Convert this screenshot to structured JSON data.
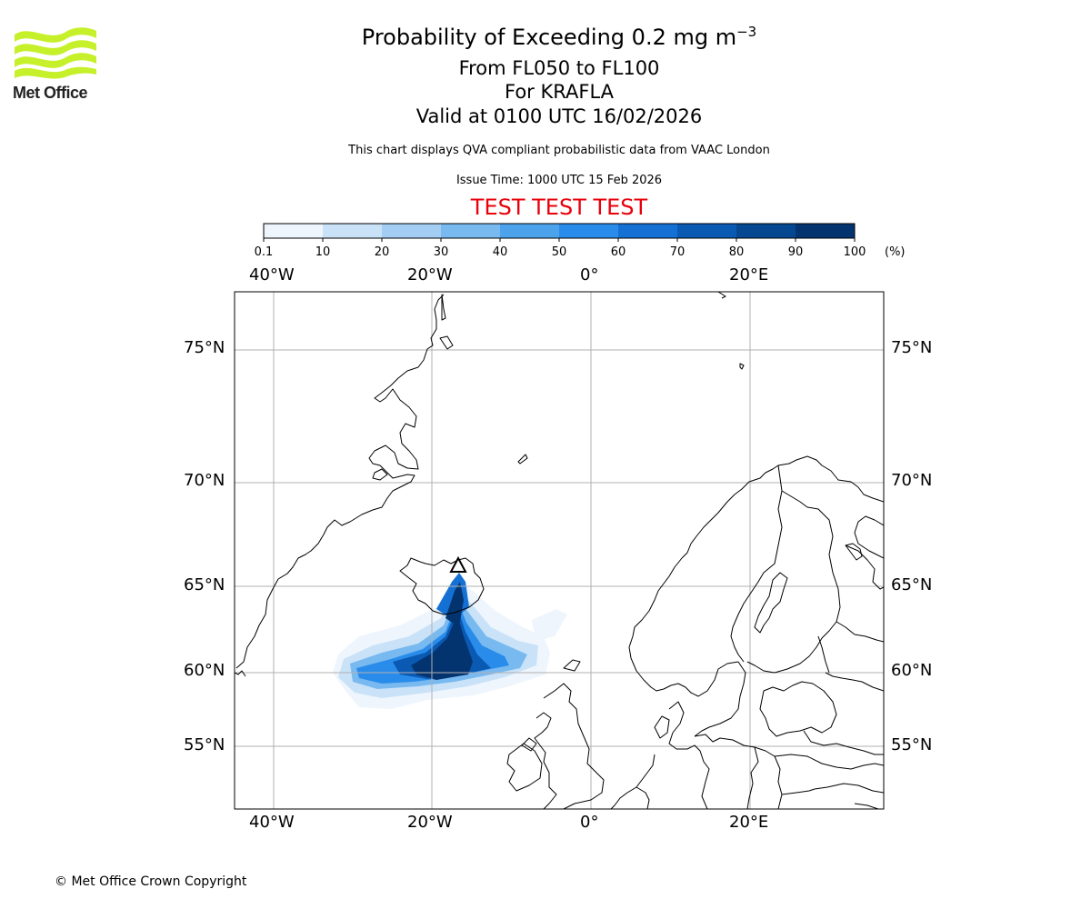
{
  "titles": {
    "main": "Probability of Exceeding 0.2 mg m",
    "main_sup": "−3",
    "levels": "From FL050 to FL100",
    "volcano": "For KRAFLA",
    "valid": "Valid at 0100 UTC 16/02/2026",
    "description": "This chart displays QVA compliant probabilistic data from VAAC London",
    "issue_time": "Issue Time: 1000 UTC 15 Feb 2026",
    "test_banner": "TEST TEST TEST"
  },
  "logo": {
    "text": "Met Office",
    "color": "#c6f02a"
  },
  "copyright": "© Met Office Crown Copyright",
  "colorbar": {
    "ticks": [
      "0.1",
      "10",
      "20",
      "30",
      "40",
      "50",
      "60",
      "70",
      "80",
      "90",
      "100"
    ],
    "unit": "(%)",
    "colors": [
      "#eef5fd",
      "#c9e2f7",
      "#a3cdf3",
      "#78b9f0",
      "#4da2ec",
      "#2a8cea",
      "#1570d4",
      "#0a59b3",
      "#064791",
      "#043470"
    ]
  },
  "map": {
    "lon_labels": [
      "40°W",
      "20°W",
      "0°",
      "20°E"
    ],
    "lat_labels": [
      "75°N",
      "70°N",
      "65°N",
      "60°N",
      "55°N"
    ],
    "grid_color": "#b0b0b0",
    "volcano_marker": "triangle"
  }
}
